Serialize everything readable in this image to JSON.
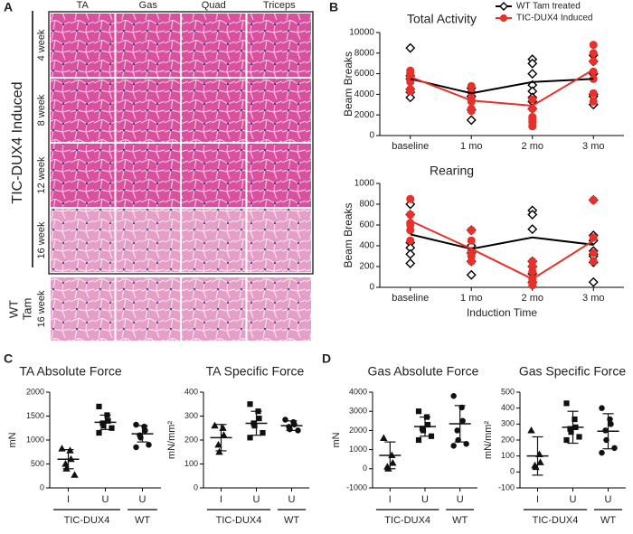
{
  "panel_labels": [
    "A",
    "B",
    "C",
    "D"
  ],
  "histology": {
    "columns": [
      "TA",
      "Gas",
      "Quad",
      "Triceps"
    ],
    "rows": [
      "4 week",
      "8 week",
      "12 week",
      "16 week"
    ],
    "group_label": "TIC-DUX4 Induced",
    "wt_label": [
      "WT",
      "Tam",
      "16 week"
    ]
  },
  "chart_data": [
    {
      "type": "line",
      "title": "Total Activity",
      "y_label": "Beam Breaks",
      "categories": [
        "baseline",
        "1 mo",
        "2 mo",
        "3 mo"
      ],
      "ylim": [
        0,
        10000
      ],
      "yticks": [
        0,
        2000,
        4000,
        6000,
        8000,
        10000
      ],
      "legend": "top-right",
      "series": [
        {
          "name": "WT Tam treated",
          "color": "#000000",
          "marker": "diamond",
          "values": [
            5500,
            4100,
            5200,
            5500
          ],
          "points": [
            [
              8500,
              5800,
              5500,
              4500,
              4200,
              3700
            ],
            [
              4600,
              4200,
              3800,
              2500,
              1500
            ],
            [
              7400,
              7000,
              6000,
              4900,
              4300,
              3700,
              3300,
              2600
            ],
            [
              7800,
              7200,
              6000,
              4000,
              3800,
              3000
            ]
          ]
        },
        {
          "name": "TIC-DUX4 Induced",
          "color": "#e8312a",
          "marker": "circle",
          "values": [
            5700,
            3400,
            2900,
            6400
          ],
          "points": [
            [
              6300,
              6100,
              5900,
              5700,
              5400,
              5200,
              4500,
              4300
            ],
            [
              4800,
              4200,
              3500,
              3300,
              2600,
              2400
            ],
            [
              3500,
              2600,
              1800,
              1600,
              1300,
              900
            ],
            [
              8800,
              8000,
              7200,
              6200,
              5500,
              4100,
              3300
            ]
          ]
        }
      ]
    },
    {
      "type": "line",
      "title": "Rearing",
      "y_label": "Beam Breaks",
      "x_label": "Induction Time",
      "categories": [
        "baseline",
        "1 mo",
        "2 mo",
        "3 mo"
      ],
      "ylim": [
        0,
        1000
      ],
      "yticks": [
        0,
        200,
        400,
        600,
        800,
        1000
      ],
      "series": [
        {
          "color": "#000000",
          "marker": "diamond",
          "values": [
            510,
            370,
            480,
            410
          ],
          "points": [
            [
              800,
              700,
              430,
              380,
              320,
              230
            ],
            [
              550,
              400,
              330,
              250,
              120
            ],
            [
              740,
              700,
              560,
              250,
              200,
              130,
              50
            ],
            [
              840,
              500,
              450,
              350,
              320,
              300,
              240,
              50
            ]
          ]
        },
        {
          "color": "#e8312a",
          "marker": "circle",
          "values": [
            640,
            370,
            80,
            450
          ],
          "points": [
            [
              850,
              700,
              620,
              600,
              550,
              450
            ],
            [
              550,
              450,
              350,
              320,
              300,
              250
            ],
            [
              250,
              200,
              150,
              80,
              50,
              20
            ],
            [
              840,
              480,
              330,
              250
            ]
          ]
        }
      ]
    },
    {
      "type": "dotplot",
      "title": "TA Absolute Force",
      "y_label": "mN",
      "categories": [
        "I",
        "U",
        "U"
      ],
      "group_labels": [
        "TIC-DUX4",
        "WT"
      ],
      "ylim": [
        0,
        2000
      ],
      "yticks": [
        0,
        500,
        1000,
        1500,
        2000
      ],
      "markers": [
        "triangle",
        "square",
        "circle"
      ],
      "groups": [
        {
          "points": [
            820,
            780,
            600,
            500,
            400,
            270
          ],
          "mean": 600,
          "sd": 200
        },
        {
          "points": [
            1700,
            1520,
            1400,
            1350,
            1300,
            1250,
            1150
          ],
          "mean": 1370,
          "sd": 150
        },
        {
          "points": [
            1320,
            1280,
            1200,
            1100,
            1050,
            900,
            850
          ],
          "mean": 1130,
          "sd": 170
        }
      ]
    },
    {
      "type": "dotplot",
      "title": "TA Specific Force",
      "y_label": "mN/mm²",
      "categories": [
        "I",
        "U",
        "U"
      ],
      "group_labels": [
        "TIC-DUX4",
        "WT"
      ],
      "ylim": [
        0,
        400
      ],
      "yticks": [
        0,
        100,
        200,
        300,
        400
      ],
      "markers": [
        "triangle",
        "square",
        "circle"
      ],
      "groups": [
        {
          "points": [
            260,
            250,
            220,
            180,
            150
          ],
          "mean": 210,
          "sd": 55
        },
        {
          "points": [
            350,
            320,
            290,
            270,
            260,
            230,
            210
          ],
          "mean": 270,
          "sd": 50
        },
        {
          "points": [
            285,
            275,
            265,
            255,
            245,
            240
          ],
          "mean": 260,
          "sd": 20
        }
      ]
    },
    {
      "type": "dotplot",
      "title": "Gas Absolute Force",
      "y_label": "mN",
      "categories": [
        "I",
        "U",
        "U"
      ],
      "group_labels": [
        "TIC-DUX4",
        "WT"
      ],
      "ylim": [
        -1000,
        4000
      ],
      "yticks": [
        -1000,
        0,
        1000,
        2000,
        3000,
        4000
      ],
      "markers": [
        "triangle",
        "square",
        "circle"
      ],
      "groups": [
        {
          "points": [
            1600,
            700,
            300,
            100,
            0
          ],
          "mean": 700,
          "sd": 700
        },
        {
          "points": [
            3000,
            2700,
            2300,
            2100,
            2000,
            1700,
            1500
          ],
          "mean": 2200,
          "sd": 500
        },
        {
          "points": [
            3800,
            3200,
            2500,
            2000,
            1500,
            1300,
            1200
          ],
          "mean": 2350,
          "sd": 950
        }
      ]
    },
    {
      "type": "dotplot",
      "title": "Gas Specific Force",
      "y_label": "mN/mm²",
      "categories": [
        "I",
        "U",
        "U"
      ],
      "group_labels": [
        "TIC-DUX4",
        "WT"
      ],
      "ylim": [
        -100,
        500
      ],
      "yticks": [
        -100,
        0,
        100,
        200,
        300,
        400,
        500
      ],
      "markers": [
        "triangle",
        "square",
        "circle"
      ],
      "groups": [
        {
          "points": [
            260,
            110,
            60,
            40,
            30
          ],
          "mean": 100,
          "sd": 120
        },
        {
          "points": [
            430,
            330,
            280,
            270,
            250,
            220,
            200
          ],
          "mean": 280,
          "sd": 100
        },
        {
          "points": [
            400,
            330,
            300,
            260,
            200,
            150,
            120
          ],
          "mean": 255,
          "sd": 110
        }
      ]
    }
  ]
}
